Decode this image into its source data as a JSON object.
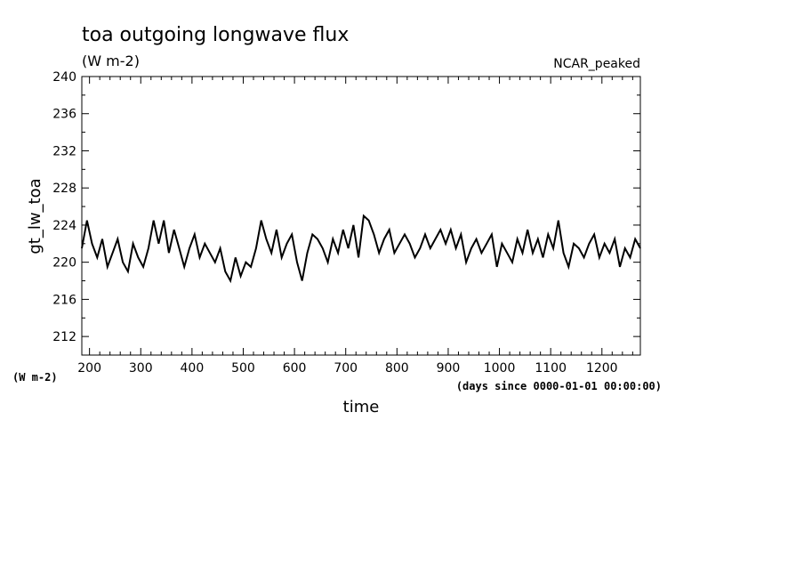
{
  "chart_data": {
    "type": "line",
    "title": "toa outgoing longwave flux",
    "units": "(W m-2)",
    "case_name": "NCAR_peaked",
    "xlabel": "time",
    "xlabel_note": "(days since 0000-01-01 00:00:00)",
    "ylabel": "gt_lw_toa",
    "ylabel_units": "(W m-2)",
    "xlim": [
      185,
      1275
    ],
    "ylim": [
      210,
      240
    ],
    "x_ticks": [
      200,
      300,
      400,
      500,
      600,
      700,
      800,
      900,
      1000,
      1100,
      1200
    ],
    "y_ticks": [
      212,
      216,
      220,
      224,
      228,
      232,
      236,
      240
    ],
    "grid": false,
    "line_color": "#000000",
    "series": [
      {
        "x": [
          185,
          195,
          205,
          215,
          225,
          235,
          245,
          255,
          265,
          275,
          285,
          295,
          305,
          315,
          325,
          335,
          345,
          355,
          365,
          375,
          385,
          395,
          405,
          415,
          425,
          435,
          445,
          455,
          465,
          475,
          485,
          495,
          505,
          515,
          525,
          535,
          545,
          555,
          565,
          575,
          585,
          595,
          605,
          615,
          625,
          635,
          645,
          655,
          665,
          675,
          685,
          695,
          705,
          715,
          725,
          735,
          745,
          755,
          765,
          775,
          785,
          795,
          805,
          815,
          825,
          835,
          845,
          855,
          865,
          875,
          885,
          895,
          905,
          915,
          925,
          935,
          945,
          955,
          965,
          975,
          985,
          995,
          1005,
          1015,
          1025,
          1035,
          1045,
          1055,
          1065,
          1075,
          1085,
          1095,
          1105,
          1115,
          1125,
          1135,
          1145,
          1155,
          1165,
          1175,
          1185,
          1195,
          1205,
          1215,
          1225,
          1235,
          1245,
          1255,
          1265,
          1275
        ],
        "y": [
          221.5,
          224.5,
          222.0,
          220.5,
          222.5,
          219.5,
          221.0,
          222.5,
          220.0,
          219.0,
          222.0,
          220.5,
          219.5,
          221.5,
          224.5,
          222.0,
          224.5,
          221.0,
          223.5,
          221.5,
          219.5,
          221.5,
          223.0,
          220.5,
          222.0,
          221.0,
          220.0,
          221.5,
          219.0,
          218.0,
          220.5,
          218.5,
          220.0,
          219.5,
          221.5,
          224.5,
          222.5,
          221.0,
          223.5,
          220.5,
          222.0,
          223.0,
          220.0,
          218.0,
          221.0,
          223.0,
          222.5,
          221.5,
          220.0,
          222.5,
          221.0,
          223.5,
          221.5,
          224.0,
          220.5,
          225.0,
          224.5,
          223.0,
          221.0,
          222.5,
          223.5,
          221.0,
          222.0,
          223.0,
          222.0,
          220.5,
          221.5,
          223.0,
          221.5,
          222.5,
          223.5,
          222.0,
          223.5,
          221.5,
          223.0,
          220.0,
          221.5,
          222.5,
          221.0,
          222.0,
          223.0,
          219.5,
          222.0,
          221.0,
          220.0,
          222.5,
          221.0,
          223.5,
          221.0,
          222.5,
          220.5,
          223.0,
          221.5,
          224.5,
          221.0,
          219.5,
          222.0,
          221.5,
          220.5,
          222.0,
          223.0,
          220.5,
          222.0,
          221.0,
          222.5,
          219.5,
          221.5,
          220.5,
          222.5,
          221.5
        ]
      }
    ]
  }
}
